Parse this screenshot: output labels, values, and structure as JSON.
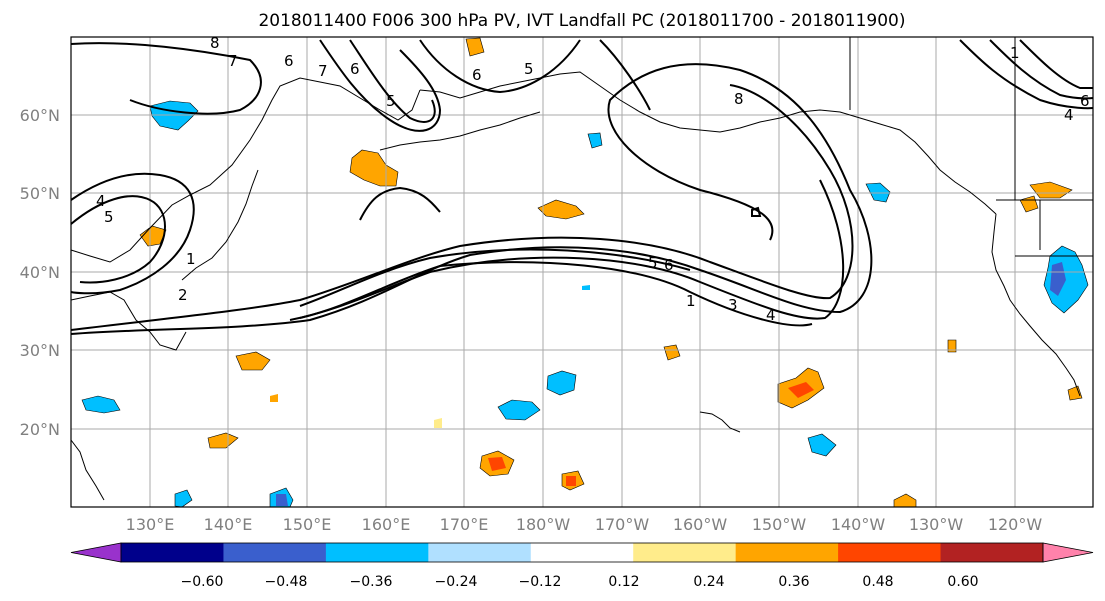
{
  "title": "2018011400 F006 300 hPa PV, IVT Landfall PC (2018011700 - 2018011900)",
  "lat_labels": [
    "60°N",
    "50°N",
    "40°N",
    "30°N",
    "20°N"
  ],
  "lon_labels": [
    "130°E",
    "140°E",
    "150°E",
    "160°E",
    "170°E",
    "180°W",
    "170°W",
    "160°W",
    "150°W",
    "140°W",
    "130°W",
    "120°W"
  ],
  "colorbar": {
    "ticks": [
      "−0.60",
      "−0.48",
      "−0.36",
      "−0.24",
      "−0.12",
      "0.12",
      "0.24",
      "0.36",
      "0.48",
      "0.60"
    ],
    "colors": [
      "#9932cc",
      "#00008b",
      "#3a5fcd",
      "#00bfff",
      "#b0e0ff",
      "#ffffff",
      "#ffec8b",
      "#ffa500",
      "#ff4500",
      "#b22222",
      "#ff82ab"
    ]
  },
  "contour_labels": [
    "8",
    "7",
    "6",
    "7",
    "6",
    "5",
    "6",
    "5",
    "4",
    "5",
    "1",
    "2",
    "5",
    "6",
    "1",
    "3",
    "4",
    "8",
    "1",
    "6",
    "4"
  ]
}
